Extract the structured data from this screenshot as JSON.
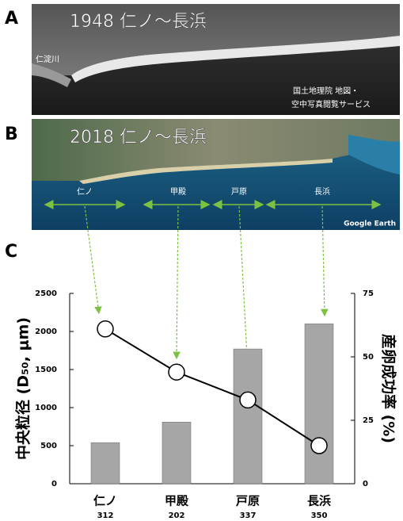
{
  "panel_a": {
    "label": "A",
    "title": "1948 仁ノ〜長浜",
    "river": "仁淀川",
    "credit": [
      "国土地理院 地図・",
      "空中写真閲覧サービス"
    ]
  },
  "panel_b": {
    "label": "B",
    "title": "2018 仁ノ〜長浜",
    "segments": [
      "仁ノ",
      "甲殿",
      "戸原",
      "長浜"
    ],
    "credit": "Google Earth"
  },
  "panel_c": {
    "label": "C"
  },
  "chart_data": {
    "type": "bar",
    "categories": [
      "仁ノ",
      "甲殿",
      "戸原",
      "長浜"
    ],
    "category_counts": [
      312,
      202,
      337,
      350
    ],
    "y_label": "中央粒径 (D₅₀, μm)",
    "y2_label": "産卵成功率 (%)",
    "series": [
      {
        "values": [
          540,
          810,
          1770,
          2100
        ],
        "color": "#a6a6a6"
      },
      {
        "type": "line",
        "axis": "y2",
        "values": [
          61,
          44,
          33,
          15
        ],
        "color": "#000000"
      }
    ],
    "ylim": [
      0,
      2500
    ],
    "yticks": [
      0,
      500,
      1000,
      1500,
      2000,
      2500
    ],
    "y2lim": [
      0,
      75
    ],
    "y2ticks": [
      0,
      25,
      50,
      75
    ]
  }
}
